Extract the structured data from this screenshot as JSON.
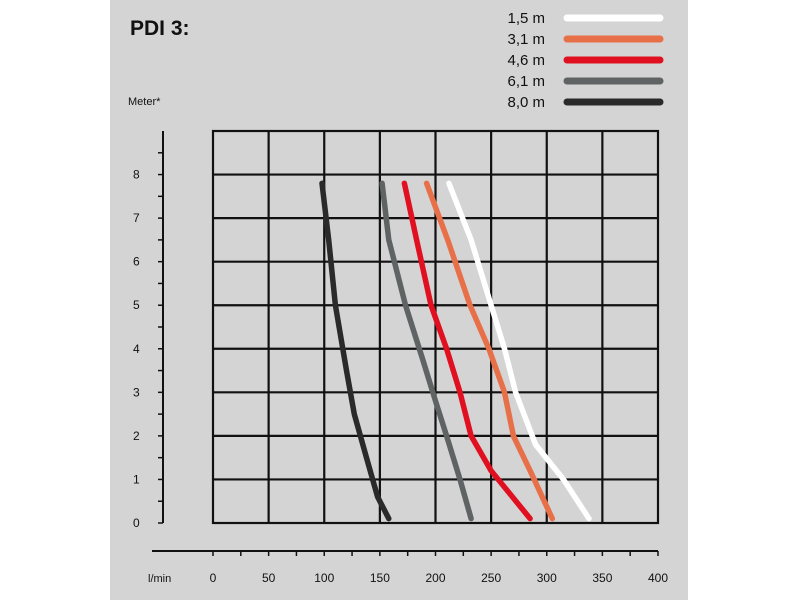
{
  "chart_data": {
    "type": "line",
    "title": "PDI 3:",
    "ylabel": "Meter*",
    "xlabel": "l/min",
    "xlim": [
      0,
      400
    ],
    "ylim": [
      0,
      9
    ],
    "xticks": [
      0,
      50,
      100,
      150,
      200,
      250,
      300,
      350,
      400
    ],
    "yticks": [
      0,
      1,
      2,
      3,
      4,
      5,
      6,
      7,
      8
    ],
    "grid": true,
    "legend_position": "top-right",
    "series": [
      {
        "name": "1,5 m",
        "color": "#ffffff",
        "x": [
          212,
          232,
          250,
          262,
          272,
          290,
          315,
          338
        ],
        "y": [
          7.8,
          6.5,
          5.0,
          4.0,
          3.0,
          1.8,
          1.0,
          0.1
        ]
      },
      {
        "name": "3,1 m",
        "color": "#e87048",
        "x": [
          192,
          211,
          231,
          248,
          262,
          270,
          285,
          305
        ],
        "y": [
          7.8,
          6.5,
          5.0,
          4.0,
          3.0,
          2.0,
          1.2,
          0.1
        ]
      },
      {
        "name": "4,6 m",
        "color": "#e01020",
        "x": [
          172,
          183,
          196,
          210,
          222,
          232,
          250,
          285
        ],
        "y": [
          7.8,
          6.5,
          5.0,
          4.0,
          3.0,
          2.0,
          1.2,
          0.1
        ]
      },
      {
        "name": "6,1 m",
        "color": "#5f6363",
        "x": [
          152,
          158,
          173,
          188,
          200,
          210,
          222,
          232
        ],
        "y": [
          7.8,
          6.5,
          5.0,
          3.8,
          2.8,
          2.0,
          1.0,
          0.1
        ]
      },
      {
        "name": "8,0 m",
        "color": "#2a2a2a",
        "x": [
          98,
          104,
          110,
          120,
          127,
          138,
          148,
          158
        ],
        "y": [
          7.8,
          6.5,
          5.0,
          3.5,
          2.5,
          1.5,
          0.6,
          0.1
        ]
      }
    ]
  }
}
